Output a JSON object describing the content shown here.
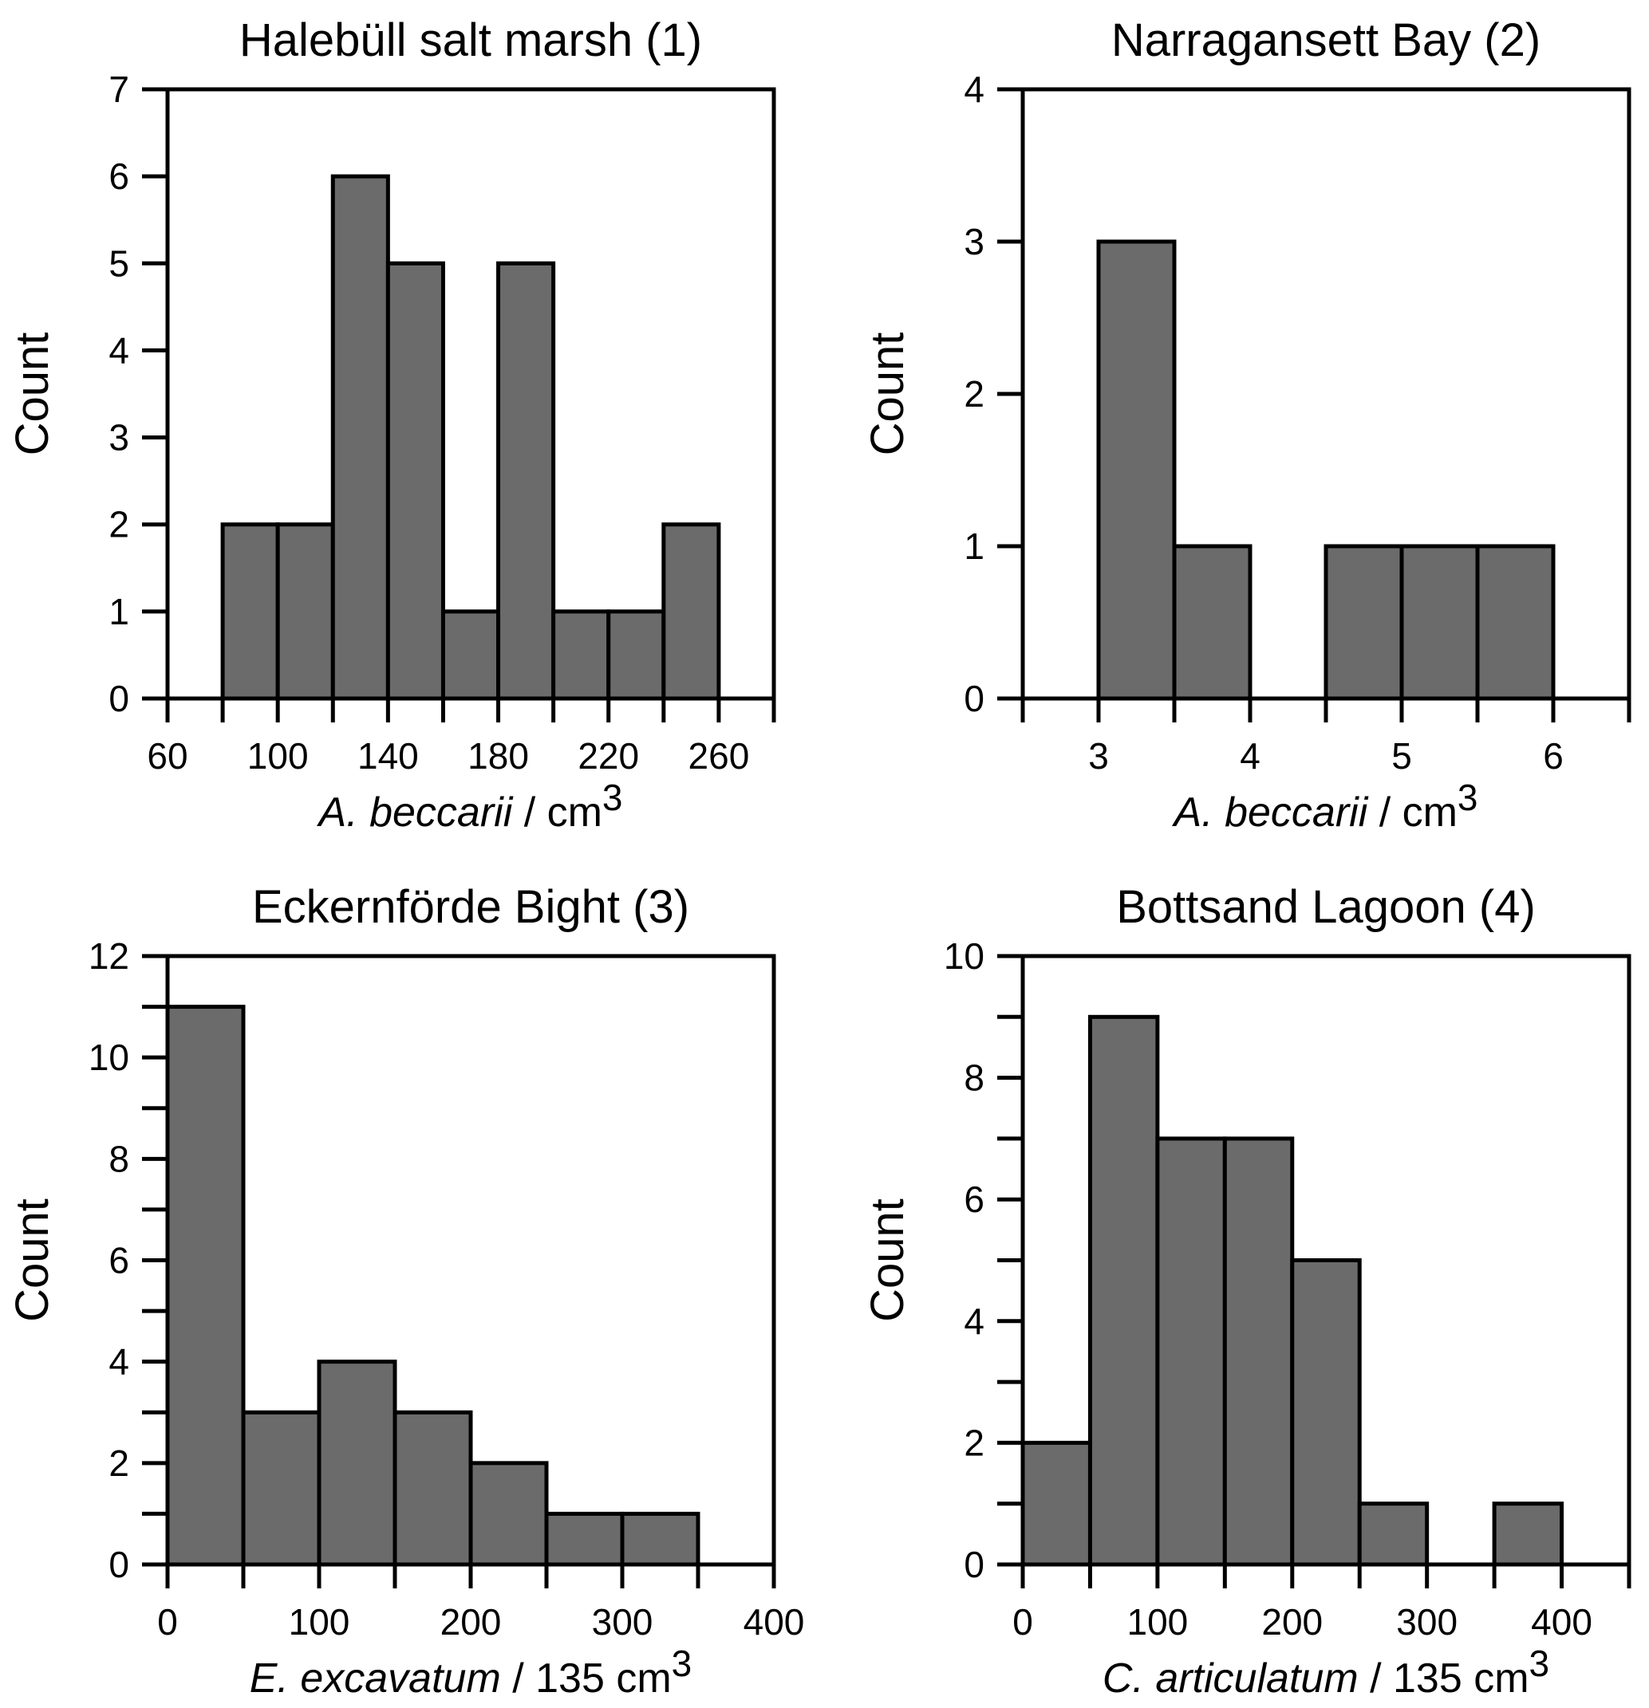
{
  "chart_data": [
    {
      "type": "bar",
      "histogram": true,
      "title": "Halebüll salt marsh (1)",
      "xlabel_italic": "A. beccarii",
      "xlabel_rest": " / cm",
      "xlabel_sup": "3",
      "ylabel": "Count",
      "xlim": [
        60,
        280
      ],
      "ylim": [
        0,
        7
      ],
      "x_major_ticks": [
        60,
        100,
        140,
        180,
        220,
        260
      ],
      "x_minor_ticks": [
        60,
        80,
        100,
        120,
        140,
        160,
        180,
        200,
        220,
        240,
        260,
        280
      ],
      "y_major_ticks": [
        0,
        1,
        2,
        3,
        4,
        5,
        6,
        7
      ],
      "y_minor_ticks": [],
      "bins": [
        [
          80,
          100
        ],
        [
          100,
          120
        ],
        [
          120,
          140
        ],
        [
          140,
          160
        ],
        [
          160,
          180
        ],
        [
          180,
          200
        ],
        [
          200,
          220
        ],
        [
          220,
          240
        ],
        [
          240,
          260
        ]
      ],
      "values": [
        2,
        2,
        6,
        5,
        1,
        5,
        1,
        1,
        2
      ]
    },
    {
      "type": "bar",
      "histogram": true,
      "title": "Narragansett Bay (2)",
      "xlabel_italic": "A. beccarii",
      "xlabel_rest": " / cm",
      "xlabel_sup": "3",
      "ylabel": "Count",
      "xlim": [
        2.5,
        6.5
      ],
      "ylim": [
        0,
        4
      ],
      "x_major_ticks": [
        3,
        4,
        5,
        6
      ],
      "x_minor_ticks": [
        2.5,
        3,
        3.5,
        4,
        4.5,
        5,
        5.5,
        6,
        6.5
      ],
      "y_major_ticks": [
        0,
        1,
        2,
        3,
        4
      ],
      "y_minor_ticks": [],
      "bins": [
        [
          3,
          3.5
        ],
        [
          3.5,
          4
        ],
        [
          4.5,
          5
        ],
        [
          5,
          5.5
        ],
        [
          5.5,
          6
        ]
      ],
      "values": [
        3,
        1,
        1,
        1,
        1
      ]
    },
    {
      "type": "bar",
      "histogram": true,
      "title": "Eckernförde Bight (3)",
      "xlabel_italic": "E. excavatum",
      "xlabel_rest": " / 135 cm",
      "xlabel_sup": "3",
      "ylabel": "Count",
      "xlim": [
        0,
        400
      ],
      "ylim": [
        0,
        12
      ],
      "x_major_ticks": [
        0,
        100,
        200,
        300,
        400
      ],
      "x_minor_ticks": [
        0,
        50,
        100,
        150,
        200,
        250,
        300,
        350,
        400
      ],
      "y_major_ticks": [
        0,
        2,
        4,
        6,
        8,
        10,
        12
      ],
      "y_minor_ticks": [
        1,
        3,
        5,
        7,
        9,
        11
      ],
      "bins": [
        [
          0,
          50
        ],
        [
          50,
          100
        ],
        [
          100,
          150
        ],
        [
          150,
          200
        ],
        [
          200,
          250
        ],
        [
          250,
          300
        ],
        [
          300,
          350
        ]
      ],
      "values": [
        11,
        3,
        4,
        3,
        2,
        1,
        1
      ]
    },
    {
      "type": "bar",
      "histogram": true,
      "title": "Bottsand Lagoon (4)",
      "xlabel_italic": "C. articulatum",
      "xlabel_rest": " / 135 cm",
      "xlabel_sup": "3",
      "ylabel": "Count",
      "xlim": [
        0,
        450
      ],
      "ylim": [
        0,
        10
      ],
      "x_major_ticks": [
        0,
        100,
        200,
        300,
        400
      ],
      "x_minor_ticks": [
        0,
        50,
        100,
        150,
        200,
        250,
        300,
        350,
        400,
        450
      ],
      "y_major_ticks": [
        0,
        2,
        4,
        6,
        8,
        10
      ],
      "y_minor_ticks": [
        1,
        3,
        5,
        7,
        9
      ],
      "bins": [
        [
          0,
          50
        ],
        [
          50,
          100
        ],
        [
          100,
          150
        ],
        [
          150,
          200
        ],
        [
          200,
          250
        ],
        [
          250,
          300
        ],
        [
          350,
          400
        ]
      ],
      "values": [
        2,
        9,
        7,
        7,
        5,
        1,
        1
      ]
    }
  ],
  "colors": {
    "bar_fill": "#6b6b6b",
    "bar_stroke": "#000000"
  }
}
